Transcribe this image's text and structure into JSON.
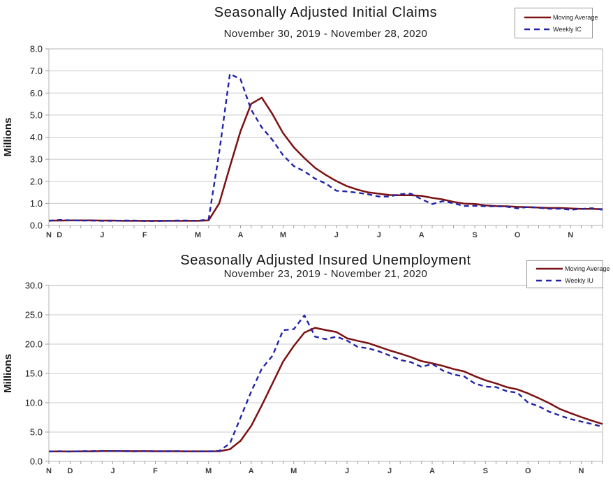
{
  "figure": {
    "background": "#ffffff",
    "grid_color": "#c9c9c9",
    "axis_color": "#9a9a9a"
  },
  "chart_data": [
    {
      "id": "seasonally-adjusted-initial-claims",
      "type": "line",
      "title": "Seasonally Adjusted Initial Claims",
      "subtitle": "November 30, 2019 - November 28, 2020",
      "ylabel": "Millions",
      "ylim": [
        0.0,
        8.0
      ],
      "y_tick_step": 1.0,
      "y_tick_labels": [
        "0.0",
        "1.0",
        "2.0",
        "3.0",
        "4.0",
        "5.0",
        "6.0",
        "7.0",
        "8.0"
      ],
      "weeks": 53,
      "grid": true,
      "legend_position": "top-right",
      "x_ticks": [
        {
          "label": "N",
          "week": 0
        },
        {
          "label": "D",
          "week": 1
        },
        {
          "label": "J",
          "week": 5
        },
        {
          "label": "F",
          "week": 9
        },
        {
          "label": "M",
          "week": 14
        },
        {
          "label": "A",
          "week": 18
        },
        {
          "label": "M",
          "week": 22
        },
        {
          "label": "J",
          "week": 27
        },
        {
          "label": "J",
          "week": 31
        },
        {
          "label": "A",
          "week": 35
        },
        {
          "label": "S",
          "week": 40
        },
        {
          "label": "O",
          "week": 44
        },
        {
          "label": "N",
          "week": 49
        }
      ],
      "series": [
        {
          "name": "Moving Average",
          "style": "solid",
          "color": "#7b1113",
          "values": [
            0.22,
            0.22,
            0.23,
            0.23,
            0.23,
            0.22,
            0.22,
            0.21,
            0.21,
            0.21,
            0.21,
            0.21,
            0.21,
            0.21,
            0.21,
            0.23,
            1.0,
            2.67,
            4.27,
            5.51,
            5.79,
            5.04,
            4.18,
            3.54,
            3.05,
            2.61,
            2.29,
            2.01,
            1.78,
            1.62,
            1.5,
            1.44,
            1.38,
            1.37,
            1.37,
            1.34,
            1.25,
            1.18,
            1.07,
            0.99,
            0.97,
            0.91,
            0.88,
            0.87,
            0.84,
            0.83,
            0.81,
            0.79,
            0.79,
            0.77,
            0.75,
            0.75,
            0.74
          ]
        },
        {
          "name": "Weekly IC",
          "style": "dashed",
          "color": "#2323aa",
          "values": [
            0.21,
            0.25,
            0.23,
            0.22,
            0.22,
            0.21,
            0.21,
            0.22,
            0.22,
            0.2,
            0.2,
            0.21,
            0.22,
            0.22,
            0.21,
            0.28,
            3.31,
            6.87,
            6.62,
            5.24,
            4.44,
            3.87,
            3.18,
            2.69,
            2.45,
            2.12,
            1.9,
            1.57,
            1.54,
            1.48,
            1.41,
            1.31,
            1.31,
            1.42,
            1.44,
            1.19,
            0.97,
            1.1,
            1.01,
            0.88,
            0.89,
            0.87,
            0.87,
            0.85,
            0.77,
            0.84,
            0.8,
            0.76,
            0.76,
            0.71,
            0.75,
            0.78,
            0.71
          ]
        }
      ]
    },
    {
      "id": "seasonally-adjusted-insured-unemployment",
      "type": "line",
      "title": "Seasonally Adjusted Insured Unemployment",
      "subtitle": "November 23, 2019 - November 21, 2020",
      "ylabel": "Millions",
      "ylim": [
        0.0,
        30.0
      ],
      "y_tick_step": 5.0,
      "y_tick_labels": [
        "0.0",
        "5.0",
        "10.0",
        "15.0",
        "20.0",
        "25.0",
        "30.0"
      ],
      "weeks": 53,
      "grid": true,
      "legend_position": "top-right",
      "x_ticks": [
        {
          "label": "N",
          "week": 0
        },
        {
          "label": "D",
          "week": 2
        },
        {
          "label": "J",
          "week": 6
        },
        {
          "label": "F",
          "week": 10
        },
        {
          "label": "M",
          "week": 15
        },
        {
          "label": "A",
          "week": 19
        },
        {
          "label": "M",
          "week": 23
        },
        {
          "label": "J",
          "week": 28
        },
        {
          "label": "J",
          "week": 32
        },
        {
          "label": "A",
          "week": 36
        },
        {
          "label": "S",
          "week": 41
        },
        {
          "label": "O",
          "week": 45
        },
        {
          "label": "N",
          "week": 50
        }
      ],
      "series": [
        {
          "name": "Moving Average",
          "style": "solid",
          "color": "#7b1113",
          "values": [
            1.7,
            1.7,
            1.7,
            1.71,
            1.72,
            1.76,
            1.76,
            1.76,
            1.74,
            1.74,
            1.73,
            1.73,
            1.73,
            1.72,
            1.72,
            1.72,
            1.73,
            2.07,
            3.5,
            6.05,
            9.56,
            13.3,
            17.03,
            19.69,
            21.96,
            22.78,
            22.39,
            22.07,
            21.0,
            20.56,
            20.17,
            19.55,
            18.93,
            18.38,
            17.78,
            17.1,
            16.73,
            16.28,
            15.75,
            15.35,
            14.53,
            13.83,
            13.3,
            12.67,
            12.28,
            11.6,
            10.78,
            9.93,
            8.93,
            8.23,
            7.56,
            6.94,
            6.38
          ]
        },
        {
          "name": "Weekly IU",
          "style": "dashed",
          "color": "#2323aa",
          "values": [
            1.69,
            1.73,
            1.67,
            1.73,
            1.75,
            1.77,
            1.76,
            1.74,
            1.7,
            1.76,
            1.72,
            1.71,
            1.74,
            1.7,
            1.72,
            1.7,
            1.78,
            3.06,
            7.45,
            11.91,
            15.82,
            18.01,
            22.38,
            22.55,
            24.91,
            21.27,
            20.84,
            21.27,
            20.61,
            19.52,
            19.29,
            18.76,
            18.06,
            17.3,
            16.93,
            16.11,
            16.63,
            15.49,
            14.81,
            14.49,
            13.29,
            12.75,
            12.67,
            11.98,
            11.72,
            10.02,
            9.4,
            8.47,
            7.82,
            7.22,
            6.8,
            6.37,
            5.91
          ]
        }
      ]
    }
  ]
}
